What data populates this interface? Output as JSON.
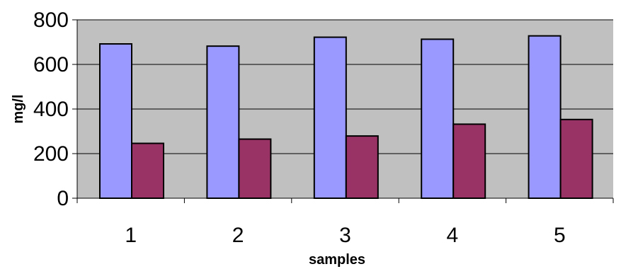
{
  "chart_data": {
    "type": "bar",
    "title": "",
    "xlabel": "samples",
    "ylabel": "mg/l",
    "categories": [
      "1",
      "2",
      "3",
      "4",
      "5"
    ],
    "series": [
      {
        "values": [
          692,
          682,
          722,
          713,
          728
        ]
      },
      {
        "values": [
          246,
          265,
          279,
          332,
          353
        ]
      }
    ],
    "ylim": [
      0,
      800
    ],
    "yticks": [
      "0",
      "200",
      "400",
      "600",
      "800"
    ],
    "grid": true,
    "legend": "none",
    "colors": {
      "plot_background": "#C0C0C0",
      "series": [
        "#9999FF",
        "#993366"
      ],
      "gridline": "#000000",
      "bar_outline": "#000000"
    }
  }
}
